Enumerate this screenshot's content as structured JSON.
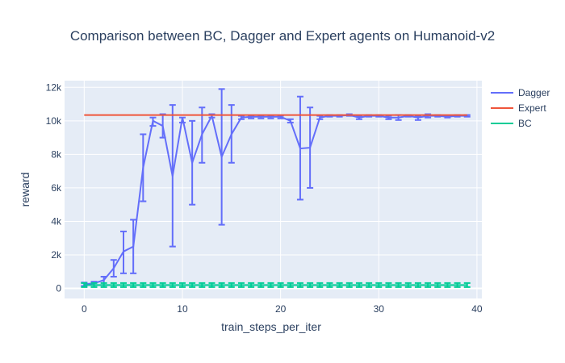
{
  "chart_data": {
    "type": "line",
    "title": "Comparison between BC, Dagger and Expert agents on Humanoid-v2",
    "xlabel": "train_steps_per_iter",
    "ylabel": "reward",
    "xlim": [
      -2,
      40.5
    ],
    "ylim": [
      -600,
      12400
    ],
    "xticks": [
      0,
      10,
      20,
      30,
      40
    ],
    "xtick_labels": [
      "0",
      "10",
      "20",
      "30",
      "40"
    ],
    "yticks": [
      0,
      2000,
      4000,
      6000,
      8000,
      10000,
      12000
    ],
    "ytick_labels": [
      "0",
      "2k",
      "4k",
      "6k",
      "8k",
      "10k",
      "12k"
    ],
    "grid": true,
    "legend_position": "right",
    "series": [
      {
        "name": "Dagger",
        "color": "#636efa",
        "x": [
          0,
          1,
          2,
          3,
          4,
          5,
          6,
          7,
          8,
          9,
          10,
          11,
          12,
          13,
          14,
          15,
          16,
          17,
          18,
          19,
          20,
          21,
          22,
          23,
          24,
          25,
          26,
          27,
          28,
          29,
          30,
          31,
          32,
          33,
          34,
          35,
          36,
          37,
          38,
          39
        ],
        "y": [
          250,
          300,
          500,
          1200,
          2200,
          2500,
          7200,
          10000,
          9700,
          6700,
          10200,
          7500,
          9200,
          10300,
          7850,
          9200,
          10200,
          10250,
          10250,
          10250,
          10250,
          10000,
          8350,
          8400,
          10200,
          10300,
          10300,
          10350,
          10200,
          10300,
          10300,
          10200,
          10200,
          10300,
          10200,
          10300,
          10300,
          10250,
          10300,
          10300
        ],
        "y_low": [
          150,
          200,
          200,
          700,
          900,
          900,
          5200,
          9700,
          9000,
          2500,
          9900,
          5000,
          7500,
          10200,
          3800,
          7500,
          10100,
          10150,
          10150,
          10150,
          10150,
          9900,
          5300,
          6000,
          10100,
          10250,
          10250,
          10300,
          10100,
          10250,
          10250,
          10100,
          10050,
          10250,
          10050,
          10200,
          10250,
          10200,
          10250,
          10250
        ],
        "y_high": [
          350,
          400,
          700,
          1700,
          3400,
          4100,
          9200,
          10200,
          10400,
          10950,
          10200,
          10000,
          10800,
          10400,
          11900,
          10950,
          10300,
          10300,
          10300,
          10300,
          10300,
          10100,
          11450,
          10800,
          10300,
          10350,
          10350,
          10400,
          10300,
          10350,
          10350,
          10300,
          10350,
          10350,
          10300,
          10400,
          10350,
          10300,
          10350,
          10350
        ]
      },
      {
        "name": "Expert",
        "color": "#ef553b",
        "x": [
          0,
          39
        ],
        "y": [
          10350,
          10350
        ]
      },
      {
        "name": "BC",
        "color": "#00cc96",
        "x": [
          0,
          1,
          2,
          3,
          4,
          5,
          6,
          7,
          8,
          9,
          10,
          11,
          12,
          13,
          14,
          15,
          16,
          17,
          18,
          19,
          20,
          21,
          22,
          23,
          24,
          25,
          26,
          27,
          28,
          29,
          30,
          31,
          32,
          33,
          34,
          35,
          36,
          37,
          38,
          39
        ],
        "y": [
          200,
          200,
          200,
          200,
          200,
          200,
          200,
          200,
          200,
          200,
          200,
          200,
          200,
          200,
          200,
          200,
          200,
          200,
          200,
          200,
          200,
          200,
          200,
          200,
          200,
          200,
          200,
          200,
          200,
          200,
          200,
          200,
          200,
          200,
          200,
          200,
          200,
          200,
          200,
          200
        ],
        "y_low": [
          80,
          80,
          80,
          80,
          80,
          80,
          80,
          80,
          80,
          80,
          80,
          80,
          80,
          80,
          80,
          80,
          80,
          80,
          80,
          80,
          80,
          80,
          80,
          80,
          80,
          80,
          80,
          80,
          80,
          80,
          80,
          80,
          80,
          80,
          80,
          80,
          80,
          80,
          80,
          80
        ],
        "y_high": [
          320,
          320,
          320,
          320,
          320,
          320,
          320,
          320,
          320,
          320,
          320,
          320,
          320,
          320,
          320,
          320,
          320,
          320,
          320,
          320,
          320,
          320,
          320,
          320,
          320,
          320,
          320,
          320,
          320,
          320,
          320,
          320,
          320,
          320,
          320,
          320,
          320,
          320,
          320,
          320
        ]
      }
    ]
  }
}
